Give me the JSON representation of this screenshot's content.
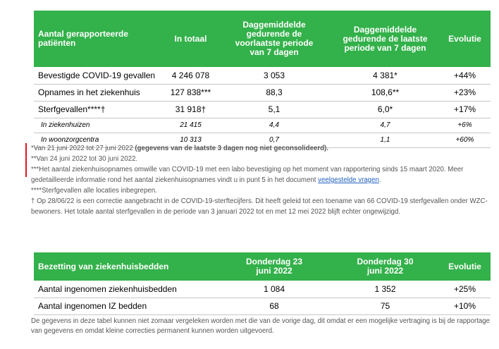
{
  "table1": {
    "headers": [
      "Aantal gerapporteerde patiënten",
      "In totaal",
      "Daggemiddelde gedurende de voorlaatste periode van 7 dagen",
      "Daggemiddelde gedurende de laatste periode van 7 dagen",
      "Evolutie"
    ],
    "rows": [
      {
        "label": "Bevestigde COVID-19 gevallen",
        "total": "4 246 078",
        "prev": "3 053",
        "last": "4 381*",
        "evo": "+44%"
      },
      {
        "label": "Opnames in het ziekenhuis",
        "total": "127 838***",
        "prev": "88,3",
        "last": "108,6**",
        "evo": "+23%"
      },
      {
        "label": "Sterfgevallen****†",
        "total": "31 918†",
        "prev": "5,1",
        "last": "6,0*",
        "evo": "+17%"
      },
      {
        "label": "In ziekenhuizen",
        "total": "21 415",
        "prev": "4,4",
        "last": "4,7",
        "evo": "+6%"
      },
      {
        "label": "In woonzorgcentra",
        "total": "10 313",
        "prev": "0,7",
        "last": "1,1",
        "evo": "+60%"
      }
    ]
  },
  "notes": {
    "n1": "*Van 21 juni 2022 tot 27 juni 2022 ",
    "n1_bold": "(gegevens van de laatste 3 dagen nog niet geconsolideerd).",
    "n2": "**Van 24 juni 2022 tot 30 juni 2022.",
    "n3": "***Het aantal ziekenhuisopnames omwille van COVID-19 met een labo bevestiging op het moment van rapportering sinds 15 maart 2020. Meer gedetailleerde informatie rond het aantal ziekenhuisopnames vindt u in punt 5 in het document ",
    "n3_link": "veelgestelde vragen",
    "n3_end": ".",
    "n4": "****Sterfgevallen alle locaties inbegrepen.",
    "n5": "† Op 28/06/22 is een correctie aangebracht in de COVID-19-sterftecijfers. Dit heeft geleid tot een toename van 66 COVID-19 sterfgevallen onder WZC-bewoners. Het totale aantal sterfgevallen in de periode van 3 januari 2022 tot en met 12 mei 2022 blijft echter ongewijzigd."
  },
  "table2": {
    "headers": [
      "Bezetting van ziekenhuisbedden",
      "Donderdag 23 juni 2022",
      "Donderdag 30 juni 2022",
      "Evolutie"
    ],
    "rows": [
      {
        "label": "Aantal ingenomen ziekenhuisbedden",
        "a": "1 084",
        "b": "1 352",
        "evo": "+25%"
      },
      {
        "label": "Aantal ingenomen IZ bedden",
        "a": "68",
        "b": "75",
        "evo": "+10%"
      }
    ]
  },
  "disclaimer": "De gegevens in deze tabel kunnen niet zomaar vergeleken worden met die van de vorige dag, dit omdat er een mogelijke vertraging is bij de rapportage van gegevens en omdat kleine correcties permanent kunnen worden uitgevoerd.",
  "colors": {
    "header_green": "#33b14a",
    "link_blue": "#1f5fbf",
    "marker_red": "#e0141e"
  }
}
